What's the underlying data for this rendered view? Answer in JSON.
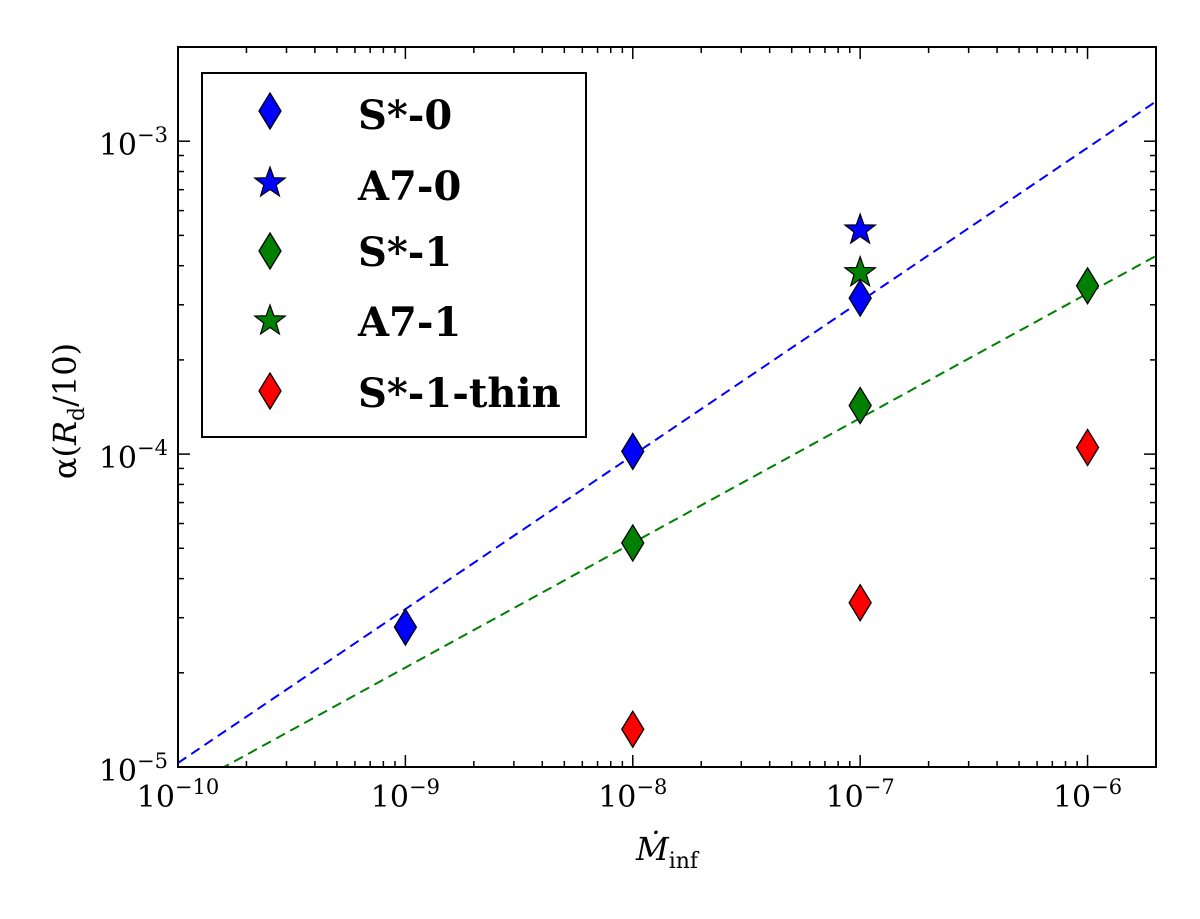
{
  "chart_data": {
    "type": "scatter",
    "title": "",
    "xlabel": {
      "base": "Ṁ",
      "sub": "inf"
    },
    "ylabel": {
      "prefix": "α(",
      "base": "R",
      "sub": "d",
      "suffix": "/10)"
    },
    "xscale": "log",
    "yscale": "log",
    "xlim": [
      1e-10,
      2e-06
    ],
    "ylim": [
      1e-05,
      0.002
    ],
    "xticks": [
      {
        "value": 1e-10,
        "base": "10",
        "exp": "−10"
      },
      {
        "value": 1e-09,
        "base": "10",
        "exp": "−9"
      },
      {
        "value": 1e-08,
        "base": "10",
        "exp": "−8"
      },
      {
        "value": 1e-07,
        "base": "10",
        "exp": "−7"
      },
      {
        "value": 1e-06,
        "base": "10",
        "exp": "−6"
      }
    ],
    "yticks": [
      {
        "value": 1e-05,
        "base": "10",
        "exp": "−5"
      },
      {
        "value": 0.0001,
        "base": "10",
        "exp": "−4"
      },
      {
        "value": 0.001,
        "base": "10",
        "exp": "−3"
      }
    ],
    "grid": false,
    "legend_position": "top-left",
    "series": [
      {
        "name": "S*-0",
        "marker": "diamond",
        "color": "#0000ff",
        "x": [
          1e-09,
          1e-08,
          1e-07
        ],
        "y": [
          2.8e-05,
          0.000102,
          0.000315
        ]
      },
      {
        "name": "A7-0",
        "marker": "star",
        "color": "#0000ff",
        "x": [
          1e-07
        ],
        "y": [
          0.00052
        ]
      },
      {
        "name": "S*-1",
        "marker": "diamond",
        "color": "#008000",
        "x": [
          1e-08,
          1e-07,
          1e-06
        ],
        "y": [
          5.2e-05,
          0.000143,
          0.000345
        ]
      },
      {
        "name": "A7-1",
        "marker": "star",
        "color": "#008000",
        "x": [
          1e-07
        ],
        "y": [
          0.00038
        ]
      },
      {
        "name": "S*-1-thin",
        "marker": "diamond",
        "color": "#ff0000",
        "x": [
          1e-08,
          1e-07,
          1e-06
        ],
        "y": [
          1.32e-05,
          3.35e-05,
          0.000105
        ]
      }
    ],
    "fit_lines": [
      {
        "color": "#0000ff",
        "style": "dashed",
        "x": [
          1e-10,
          2e-06
        ],
        "y": [
          1.03e-05,
          0.00134
        ]
      },
      {
        "color": "#008000",
        "style": "dashed",
        "x": [
          1e-10,
          2e-06
        ],
        "y": [
          8.3e-06,
          0.00043
        ]
      }
    ]
  }
}
